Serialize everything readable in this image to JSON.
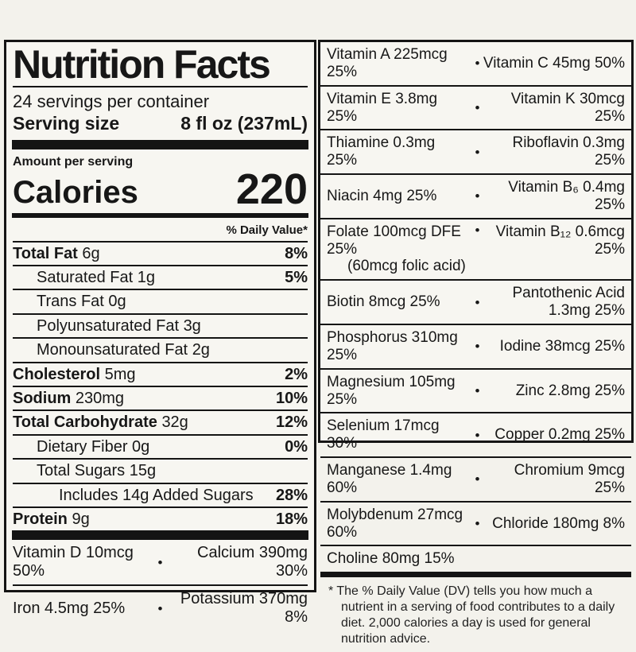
{
  "bullet": "•",
  "main": {
    "title": "Nutrition Facts",
    "servings_per_container": "24 servings per container",
    "serving_size_label": "Serving size",
    "serving_size_value": "8 fl oz (237mL)",
    "amount_per_serving": "Amount per serving",
    "calories_label": "Calories",
    "calories_value": "220",
    "daily_value_header": "% Daily Value*",
    "rows": [
      {
        "name": "Total Fat",
        "amount": "6g",
        "dv": "8%"
      },
      {
        "name": "Saturated Fat",
        "amount": "1g",
        "dv": "5%"
      },
      {
        "name": "Trans Fat",
        "amount": "0g",
        "dv": ""
      },
      {
        "name": "Polyunsaturated Fat",
        "amount": "3g",
        "dv": ""
      },
      {
        "name": "Monounsaturated Fat",
        "amount": "2g",
        "dv": ""
      },
      {
        "name": "Cholesterol",
        "amount": "5mg",
        "dv": "2%"
      },
      {
        "name": "Sodium",
        "amount": "230mg",
        "dv": "10%"
      },
      {
        "name": "Total Carbohydrate",
        "amount": "32g",
        "dv": "12%"
      },
      {
        "name": "Dietary Fiber",
        "amount": "0g",
        "dv": "0%"
      },
      {
        "name": "Total Sugars",
        "amount": "15g",
        "dv": ""
      },
      {
        "name": "Includes 14g Added Sugars",
        "amount": "",
        "dv": "28%"
      },
      {
        "name": "Protein",
        "amount": "9g",
        "dv": "18%"
      }
    ],
    "minerals": [
      {
        "left": "Vitamin D 10mcg 50%",
        "right": "Calcium 390mg 30%"
      },
      {
        "left": "Iron 4.5mg 25%",
        "right": "Potassium 370mg 8%"
      }
    ]
  },
  "side": {
    "rows": [
      {
        "left": "Vitamin A 225mcg 25%",
        "right": "Vitamin C 45mg 50%"
      },
      {
        "left": "Vitamin E 3.8mg 25%",
        "right": "Vitamin K 30mcg 25%"
      },
      {
        "left": "Thiamine 0.3mg 25%",
        "right": "Riboflavin 0.3mg 25%"
      },
      {
        "left": "Niacin 4mg 25%",
        "right": "Vitamin B₆ 0.4mg 25%"
      },
      {
        "left": "Folate 100mcg DFE 25%",
        "left2": "(60mcg folic acid)",
        "right": "Vitamin B₁₂ 0.6mcg 25%"
      },
      {
        "left": "Biotin 8mcg 25%",
        "right": "Pantothenic Acid 1.3mg 25%"
      },
      {
        "left": "Phosphorus 310mg 25%",
        "right": "Iodine 38mcg 25%"
      },
      {
        "left": "Magnesium 105mg 25%",
        "right": "Zinc 2.8mg 25%"
      },
      {
        "left": "Selenium 17mcg 30%",
        "right": "Copper 0.2mg 25%"
      },
      {
        "left": "Manganese 1.4mg 60%",
        "right": "Chromium 9mcg 25%"
      },
      {
        "left": "Molybdenum 27mcg 60%",
        "right": "Chloride 180mg 8%"
      },
      {
        "left": "Choline 80mg 15%",
        "right": ""
      }
    ],
    "footnote": "* The % Daily Value (DV) tells you how much a nutrient in a serving of food contributes to a daily diet. 2,000 calories a day is used for general nutrition advice."
  }
}
